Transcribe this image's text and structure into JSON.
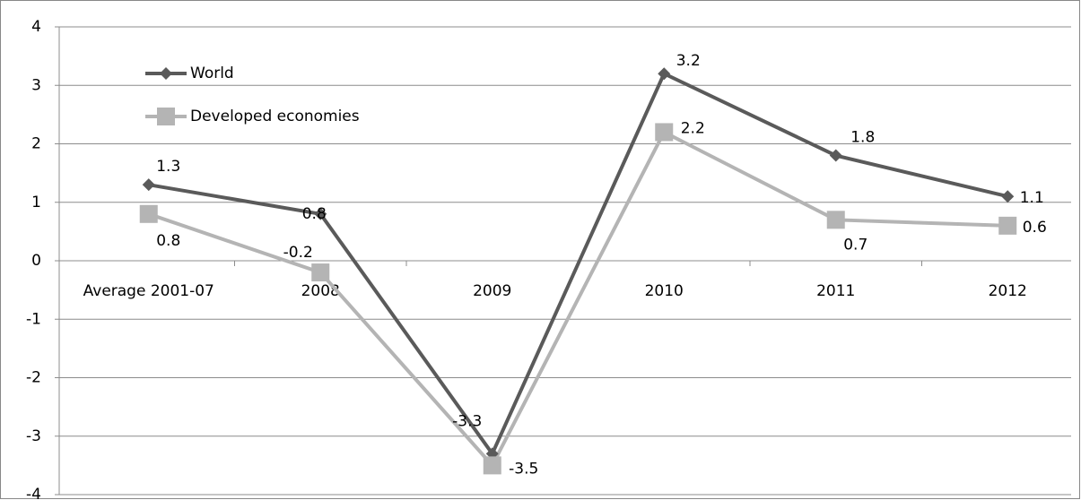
{
  "chart_data": {
    "type": "line",
    "categories": [
      "Average 2001-07",
      "2008",
      "2009",
      "2010",
      "2011",
      "2012"
    ],
    "series": [
      {
        "name": "World",
        "color": "#5a5a5a",
        "marker": "diamond",
        "values": [
          1.3,
          0.8,
          -3.3,
          3.2,
          1.8,
          1.1
        ]
      },
      {
        "name": "Developed economies",
        "color": "#b4b4b4",
        "marker": "square",
        "values": [
          0.8,
          -0.2,
          -3.5,
          2.2,
          0.7,
          0.6
        ]
      }
    ],
    "ylim": [
      -4,
      4
    ],
    "yticks": [
      -4,
      -3,
      -2,
      -1,
      0,
      1,
      2,
      3,
      4
    ],
    "grid": true,
    "legend": "top-left"
  }
}
